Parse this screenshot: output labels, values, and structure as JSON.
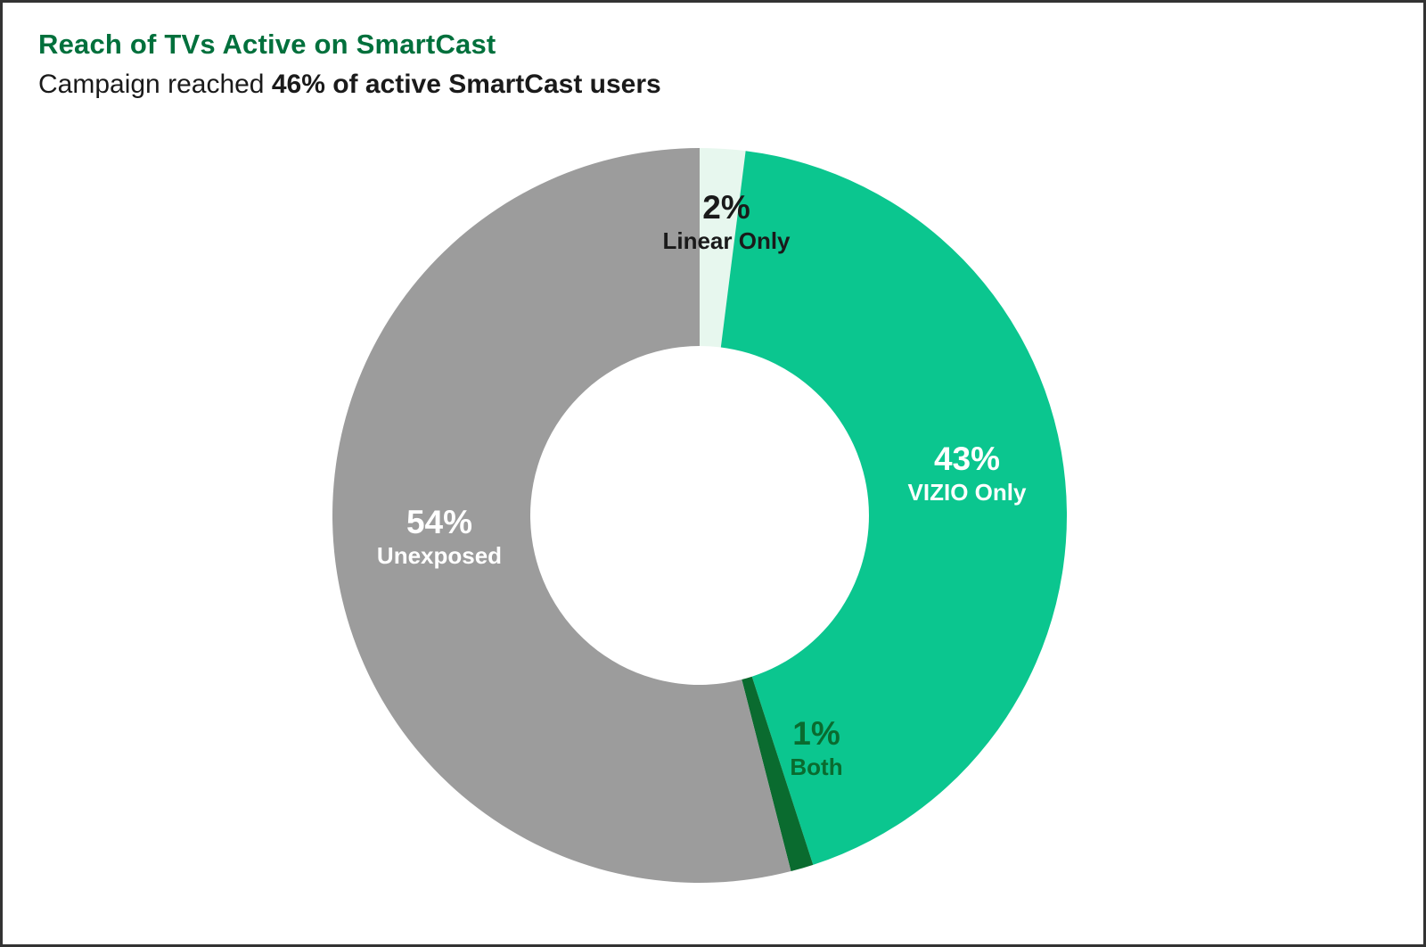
{
  "header": {
    "title": "Reach of TVs Active on SmartCast",
    "subtitle_regular": "Campaign reached ",
    "subtitle_bold": "46% of active SmartCast users"
  },
  "chart_data": {
    "type": "pie",
    "subtype": "donut",
    "title": "Reach of TVs Active on SmartCast",
    "subtitle": "Campaign reached 46% of active SmartCast users",
    "start_angle_deg_from_top": 0,
    "direction": "clockwise",
    "inner_radius_ratio": 0.46,
    "segments": [
      {
        "label": "Linear Only",
        "value_pct": 2,
        "pct_label": "2%",
        "color": "#e7f7ee",
        "label_color": "dark"
      },
      {
        "label": "VIZIO Only",
        "value_pct": 43,
        "pct_label": "43%",
        "color": "#0bc68f",
        "label_color": "white"
      },
      {
        "label": "Both",
        "value_pct": 1,
        "pct_label": "1%",
        "color": "#0a6b2f",
        "label_color": "green"
      },
      {
        "label": "Unexposed",
        "value_pct": 54,
        "pct_label": "54%",
        "color": "#9c9c9c",
        "label_color": "white"
      }
    ]
  },
  "colors": {
    "title_green": "#00703c",
    "text_dark": "#1a1a1a",
    "background": "#ffffff",
    "border": "#333333"
  }
}
